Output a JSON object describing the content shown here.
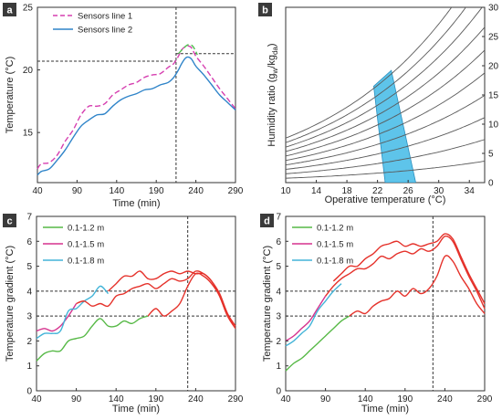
{
  "colors": {
    "sensors_line_1": "#d63fb0",
    "sensors_line_2": "#2f84c9",
    "peak_green": "#4fbf4f",
    "zone_fill": "#5ec4ea",
    "grad_12": "#57b947",
    "grad_15": "#d6328e",
    "grad_18": "#43b4d8",
    "grad_red": "#e5322b",
    "curve_gray": "#5a5a5a",
    "panel_label_bg": "#3a3a3a"
  },
  "chart_data": [
    {
      "panel": "a",
      "type": "line",
      "xlabel": "Time (min)",
      "ylabel": "Temperature (°C)",
      "xlim": [
        40,
        290
      ],
      "ylim": [
        11,
        25
      ],
      "xticks": [
        40,
        90,
        140,
        190,
        240,
        290
      ],
      "yticks": [
        15,
        20,
        25
      ],
      "legend": "top-left",
      "series": [
        {
          "name": "Sensors line 1",
          "style": "dashed",
          "color": "#d63fb0",
          "x": [
            40,
            45,
            55,
            65,
            75,
            85,
            95,
            105,
            115,
            125,
            135,
            145,
            155,
            165,
            175,
            185,
            195,
            205,
            212,
            218,
            222,
            228,
            234,
            240,
            250,
            260,
            270,
            280,
            290
          ],
          "y": [
            12.1,
            12.5,
            12.6,
            13.2,
            14.3,
            15.2,
            16.4,
            17.1,
            17.1,
            17.3,
            18.0,
            18.4,
            18.8,
            19.0,
            19.4,
            19.6,
            19.7,
            20.2,
            20.5,
            21.1,
            21.6,
            21.9,
            21.8,
            21.1,
            20.3,
            19.4,
            18.5,
            17.7,
            16.9
          ]
        },
        {
          "name": "Sensors line 2",
          "style": "solid",
          "color": "#2f84c9",
          "x": [
            40,
            45,
            55,
            65,
            75,
            85,
            95,
            105,
            115,
            125,
            135,
            145,
            155,
            165,
            175,
            185,
            195,
            205,
            212,
            218,
            222,
            228,
            234,
            240,
            250,
            260,
            270,
            280,
            290
          ],
          "y": [
            11.6,
            11.9,
            12.1,
            12.8,
            13.6,
            14.6,
            15.5,
            16.0,
            16.4,
            16.5,
            17.1,
            17.6,
            17.9,
            18.1,
            18.4,
            18.5,
            18.8,
            19.0,
            19.4,
            20.0,
            20.5,
            21.0,
            20.9,
            20.3,
            19.6,
            18.8,
            18.0,
            17.4,
            16.8
          ]
        },
        {
          "name": "",
          "style": "dashed",
          "color": "#4fbf4f",
          "x": [
            218,
            224,
            230,
            236,
            242
          ],
          "y": [
            21.3,
            21.7,
            22.0,
            21.9,
            21.2
          ]
        }
      ],
      "reference_lines": [
        {
          "orientation": "vertical",
          "x": 215
        },
        {
          "orientation": "horizontal",
          "y": 20.7,
          "x_range": [
            40,
            215
          ]
        },
        {
          "orientation": "horizontal",
          "y": 21.3,
          "x_range": [
            215,
            290
          ]
        }
      ]
    },
    {
      "panel": "b",
      "type": "line",
      "xlabel": "Operative temperature (°C)",
      "ylabel": "Humidity ratio (g_w/kg_da)",
      "ylabel_main": "Humidity ratio (g",
      "ylabel_sub1": "w",
      "ylabel_mid": "/kg",
      "ylabel_sub2": "da",
      "ylabel_end": ")",
      "xlim": [
        10,
        36
      ],
      "ylim": [
        0,
        30
      ],
      "xticks": [
        10,
        14,
        18,
        22,
        26,
        30,
        34
      ],
      "yticks": [
        0,
        5,
        10,
        15,
        20,
        25,
        30
      ],
      "y_axis_side": "right",
      "curves_rh_percent": [
        10,
        20,
        30,
        40,
        50,
        60,
        70,
        80,
        90,
        100
      ],
      "comfort_zone": {
        "polygon": [
          [
            21.5,
            16.5
          ],
          [
            23.8,
            19.2
          ],
          [
            27.0,
            0.0
          ],
          [
            23.0,
            0.0
          ]
        ]
      }
    },
    {
      "panel": "c",
      "type": "line",
      "xlabel": "Time (min)",
      "ylabel": "Temperature gradient (°C)",
      "xlim": [
        40,
        290
      ],
      "ylim": [
        0,
        7
      ],
      "xticks": [
        40,
        90,
        140,
        190,
        240,
        290
      ],
      "yticks": [
        0,
        1,
        2,
        3,
        4,
        5,
        6,
        7
      ],
      "legend": "top-left",
      "series": [
        {
          "name": "0.1-1.2 m",
          "color": "#57b947",
          "x": [
            40,
            50,
            60,
            70,
            80,
            90,
            100,
            110,
            120,
            130,
            140,
            150,
            160,
            170,
            180
          ],
          "y": [
            1.2,
            1.5,
            1.6,
            1.6,
            2.0,
            2.1,
            2.2,
            2.6,
            2.9,
            2.6,
            2.6,
            2.8,
            2.7,
            2.9,
            3.0
          ]
        },
        {
          "name": "0.1-1.5 m",
          "color": "#d6328e",
          "x": [
            40,
            50,
            60,
            70,
            80,
            90
          ],
          "y": [
            2.4,
            2.5,
            2.4,
            2.6,
            3.0,
            3.5
          ]
        },
        {
          "name": "0.1-1.8 m",
          "color": "#43b4d8",
          "x": [
            40,
            50,
            60,
            70,
            80,
            90,
            100,
            110,
            120,
            130
          ],
          "y": [
            2.1,
            2.3,
            2.3,
            2.4,
            3.2,
            3.3,
            3.6,
            3.8,
            4.2,
            3.9
          ]
        },
        {
          "name": "",
          "color": "#e5322b",
          "x": [
            180,
            190,
            200,
            210,
            220,
            230,
            240,
            250,
            260,
            270,
            280,
            290
          ],
          "y": [
            3.0,
            3.3,
            3.0,
            3.2,
            3.5,
            4.2,
            4.7,
            4.6,
            4.3,
            3.8,
            3.0,
            2.6
          ]
        },
        {
          "name": "",
          "color": "#e5322b",
          "x": [
            90,
            100,
            110,
            120,
            130,
            140,
            150,
            160,
            170,
            180,
            190,
            200,
            210,
            220,
            230,
            240,
            250,
            260,
            270,
            280,
            290
          ],
          "y": [
            3.5,
            3.6,
            3.4,
            3.5,
            3.4,
            3.8,
            3.9,
            4.1,
            4.2,
            4.3,
            4.1,
            4.3,
            4.5,
            4.4,
            4.5,
            4.8,
            4.7,
            4.4,
            3.8,
            3.0,
            2.5
          ]
        },
        {
          "name": "",
          "color": "#e5322b",
          "x": [
            130,
            140,
            150,
            160,
            170,
            180,
            190,
            200,
            210,
            220,
            230,
            240,
            250,
            260,
            270,
            280,
            290
          ],
          "y": [
            4.0,
            4.3,
            4.6,
            4.6,
            4.8,
            4.5,
            4.5,
            4.7,
            4.8,
            4.7,
            4.8,
            4.7,
            4.7,
            4.4,
            3.9,
            3.1,
            2.6
          ]
        }
      ],
      "reference_lines": [
        {
          "orientation": "vertical",
          "x": 230
        },
        {
          "orientation": "horizontal",
          "y": 4
        },
        {
          "orientation": "horizontal",
          "y": 3
        }
      ]
    },
    {
      "panel": "d",
      "type": "line",
      "xlabel": "Time (min)",
      "ylabel": "Temperature gradient (°C)",
      "xlim": [
        40,
        290
      ],
      "ylim": [
        0,
        7
      ],
      "xticks": [
        40,
        90,
        140,
        190,
        240,
        290
      ],
      "yticks": [
        0,
        1,
        2,
        3,
        4,
        5,
        6,
        7
      ],
      "legend": "top-left",
      "series": [
        {
          "name": "0.1-1.2 m",
          "color": "#57b947",
          "x": [
            40,
            50,
            60,
            70,
            80,
            90,
            100,
            110,
            120
          ],
          "y": [
            0.8,
            1.1,
            1.3,
            1.6,
            1.9,
            2.2,
            2.5,
            2.8,
            3.0
          ]
        },
        {
          "name": "0.1-1.5 m",
          "color": "#d6328e",
          "x": [
            40,
            50,
            60,
            70,
            80,
            90
          ],
          "y": [
            2.0,
            2.2,
            2.5,
            2.8,
            3.3,
            3.8
          ]
        },
        {
          "name": "0.1-1.8 m",
          "color": "#43b4d8",
          "x": [
            40,
            50,
            60,
            70,
            80,
            90,
            100,
            110
          ],
          "y": [
            1.8,
            2.0,
            2.3,
            2.6,
            3.2,
            3.6,
            4.0,
            4.3
          ]
        },
        {
          "name": "",
          "color": "#e5322b",
          "x": [
            120,
            130,
            140,
            150,
            160,
            170,
            180,
            190,
            200,
            210,
            220,
            230,
            240,
            250,
            260,
            270,
            280,
            290
          ],
          "y": [
            3.0,
            3.2,
            3.1,
            3.4,
            3.6,
            3.7,
            4.0,
            3.8,
            4.1,
            3.9,
            4.1,
            4.6,
            5.4,
            5.2,
            4.6,
            4.1,
            3.5,
            3.1
          ]
        },
        {
          "name": "",
          "color": "#e5322b",
          "x": [
            90,
            100,
            110,
            120,
            130,
            140,
            150,
            160,
            170,
            180,
            190,
            200,
            210,
            220,
            230,
            240,
            250,
            260,
            270,
            280,
            290
          ],
          "y": [
            3.8,
            4.2,
            4.5,
            4.7,
            4.9,
            4.9,
            5.1,
            5.4,
            5.3,
            5.5,
            5.6,
            5.5,
            5.7,
            5.6,
            5.8,
            6.2,
            6.0,
            5.3,
            4.6,
            4.0,
            3.3
          ]
        },
        {
          "name": "",
          "color": "#e5322b",
          "x": [
            100,
            110,
            120,
            130,
            140,
            150,
            160,
            170,
            180,
            190,
            200,
            210,
            220,
            230,
            240,
            250,
            260,
            270,
            280,
            290
          ],
          "y": [
            4.4,
            4.7,
            5.0,
            5.0,
            5.3,
            5.5,
            5.8,
            5.9,
            6.0,
            5.8,
            5.9,
            5.8,
            5.9,
            6.0,
            6.3,
            6.1,
            5.4,
            4.7,
            4.1,
            3.5
          ]
        }
      ],
      "reference_lines": [
        {
          "orientation": "vertical",
          "x": 225
        },
        {
          "orientation": "horizontal",
          "y": 4
        },
        {
          "orientation": "horizontal",
          "y": 3
        }
      ]
    }
  ]
}
